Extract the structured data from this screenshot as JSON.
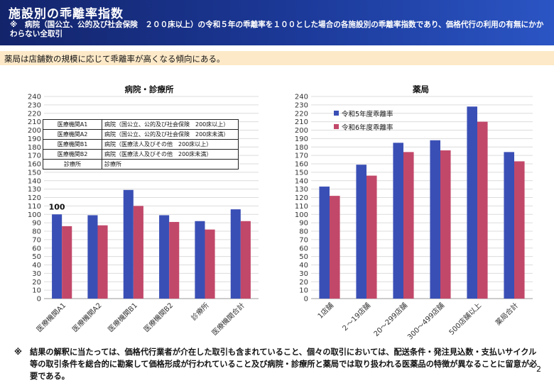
{
  "header": {
    "title": "施設別の乖離率指数",
    "subtitle": "※　病院（国公立、公的及び社会保険　２００床以上）の令和５年の乖離率を１００とした場合の各施設別の乖離率指数であり、価格代行の利用の有無にかかわらない全取引"
  },
  "summary": "薬局は店舗数の規模に応じて乖離率が高くなる傾向にある。",
  "legend_table": [
    {
      "code": "医療機関A1",
      "desc": "病院（国公立、公的及び社会保険　200床以上）"
    },
    {
      "code": "医療機関A2",
      "desc": "病院（国公立、公的及び社会保険　200床未満）"
    },
    {
      "code": "医療機関B1",
      "desc": "病院（医療法人及びその他　200床以上）"
    },
    {
      "code": "医療機関B2",
      "desc": "病院（医療法人及びその他　200床未満）"
    },
    {
      "code": "診療所",
      "desc": "診療所"
    }
  ],
  "footnote": {
    "mark": "※",
    "text": "結果の解釈に当たっては、価格代行業者が介在した取引も含まれていること、個々の取引においては、配送条件・発注見込数・支払いサイクル等の取引条件を総合的に勘案して価格形成が行われていること及び病院・診療所と薬局では取り扱われる医薬品の特徴が異なることに留意が必要である。"
  },
  "page_number": "2",
  "colors": {
    "series1": "#3a4fb5",
    "series2": "#c2486a"
  },
  "chart_data": [
    {
      "type": "bar",
      "title": "病院・診療所",
      "categories": [
        "医療機関A1",
        "医療機関A2",
        "医療機関B1",
        "医療機関B2",
        "診療所",
        "医療機関合計"
      ],
      "series": [
        {
          "values": [
            100,
            99,
            129,
            99,
            92,
            106
          ]
        },
        {
          "values": [
            86,
            87,
            110,
            91,
            82,
            92
          ]
        }
      ],
      "annotation": "100",
      "ylim": [
        0,
        240
      ],
      "yticks": [
        0,
        10,
        20,
        30,
        40,
        50,
        60,
        70,
        80,
        90,
        100,
        110,
        120,
        130,
        140,
        150,
        160,
        170,
        180,
        190,
        200,
        210,
        220,
        230,
        240
      ],
      "grid": true
    },
    {
      "type": "bar",
      "title": "薬局",
      "categories": [
        "1店舗",
        "２～19店舗",
        "20～299店舗",
        "300～499店舗",
        "500店舗以上",
        "薬局合計"
      ],
      "series": [
        {
          "name": "令和5年度乖離率",
          "values": [
            133,
            159,
            185,
            188,
            228,
            174
          ]
        },
        {
          "name": "令和6年度乖離率",
          "values": [
            122,
            146,
            174,
            176,
            210,
            163
          ]
        }
      ],
      "ylim": [
        0,
        240
      ],
      "yticks": [
        0,
        10,
        20,
        30,
        40,
        50,
        60,
        70,
        80,
        90,
        100,
        110,
        120,
        130,
        140,
        150,
        160,
        170,
        180,
        190,
        200,
        210,
        220,
        230,
        240
      ],
      "grid": true,
      "legend_position": "top-left"
    }
  ]
}
